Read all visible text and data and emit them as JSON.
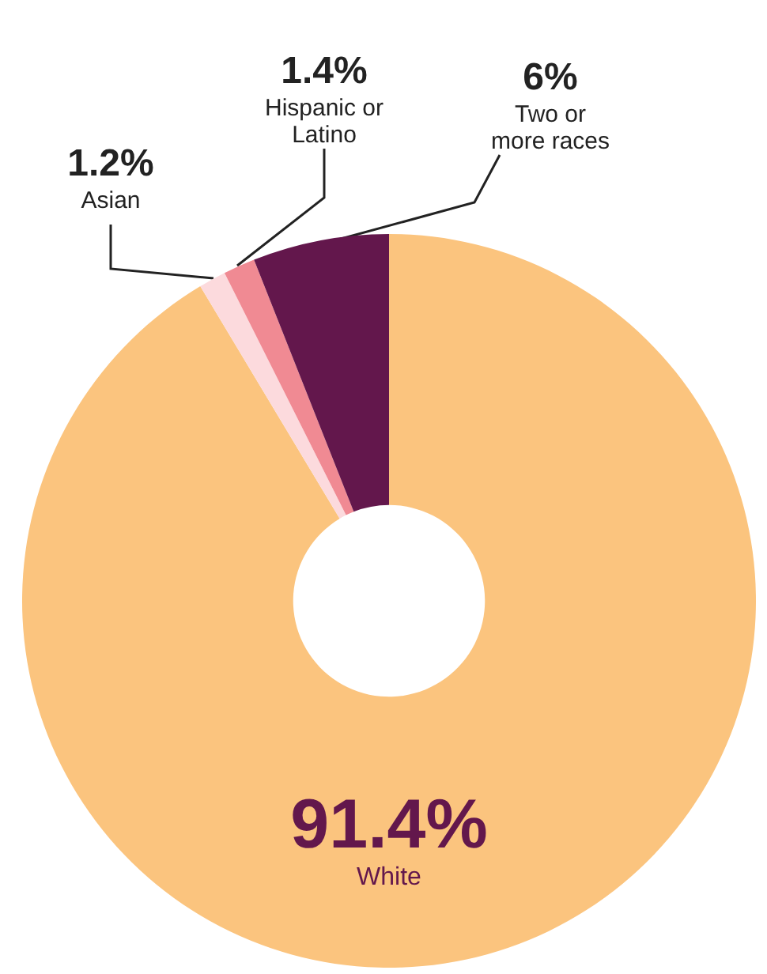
{
  "chart_data": {
    "type": "donut",
    "categories": [
      "White",
      "Asian",
      "Hispanic or Latino",
      "Two or more races"
    ],
    "values": [
      91.4,
      1.2,
      1.4,
      6
    ],
    "value_labels": [
      "91.4%",
      "1.2%",
      "1.4%",
      "6%"
    ],
    "colors": [
      "#fbc47e",
      "#fcdadd",
      "#f08a93",
      "#63174c"
    ],
    "legend": false
  }
}
